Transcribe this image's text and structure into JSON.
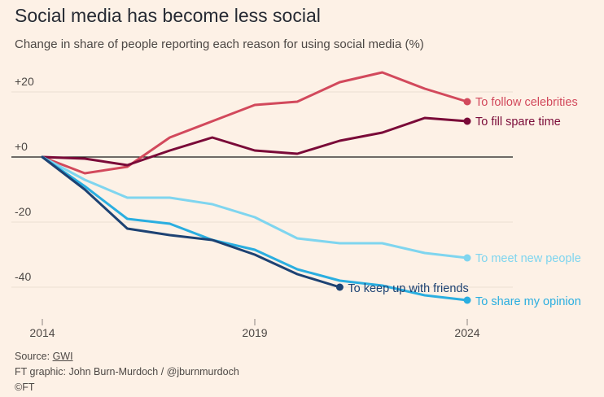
{
  "header": {
    "title": "Social media has become less social",
    "subtitle": "Change in share of people reporting each reason for using social media (%)"
  },
  "chart_data": {
    "type": "line",
    "title": "Social media has become less social",
    "subtitle": "Change in share of people reporting each reason for using social media (%)",
    "xlabel": "",
    "ylabel": "",
    "xlim": [
      2014,
      2025
    ],
    "ylim": [
      -45,
      28
    ],
    "x_ticks": [
      2014,
      2019,
      2024
    ],
    "x_tick_labels": [
      "2014",
      "2019",
      "2024"
    ],
    "y_ticks": [
      20,
      0,
      -20,
      -40
    ],
    "y_tick_labels": [
      "+20",
      "+0",
      "-20",
      "-40"
    ],
    "zero_line": true,
    "grid": true,
    "series": [
      {
        "name": "To follow celebrities",
        "color": "#d2495c",
        "x": [
          2014,
          2015,
          2016,
          2017,
          2018,
          2019,
          2020,
          2021,
          2022,
          2023,
          2024
        ],
        "values": [
          0,
          -5,
          -3,
          6,
          11,
          16,
          17,
          23,
          26,
          21,
          17
        ]
      },
      {
        "name": "To fill spare time",
        "color": "#7a0a38",
        "x": [
          2014,
          2015,
          2016,
          2017,
          2018,
          2019,
          2020,
          2021,
          2022,
          2023,
          2024
        ],
        "values": [
          0,
          -0.5,
          -2.5,
          2,
          6,
          2,
          1,
          5,
          7.5,
          12,
          11
        ]
      },
      {
        "name": "To meet new people",
        "color": "#7fd5ef",
        "x": [
          2014,
          2015,
          2016,
          2017,
          2018,
          2019,
          2020,
          2021,
          2022,
          2023,
          2024
        ],
        "values": [
          0,
          -7,
          -12.5,
          -12.5,
          -14.5,
          -18.5,
          -25,
          -26.5,
          -26.5,
          -29.5,
          -31
        ]
      },
      {
        "name": "To keep up with friends",
        "color": "#1d4273",
        "x": [
          2014,
          2015,
          2016,
          2017,
          2018,
          2019,
          2020,
          2021
        ],
        "values": [
          0,
          -10,
          -22,
          -24,
          -25.5,
          -30,
          -36,
          -40
        ]
      },
      {
        "name": "To share my opinion",
        "color": "#2aaee0",
        "x": [
          2014,
          2015,
          2016,
          2017,
          2018,
          2019,
          2020,
          2021,
          2022,
          2023,
          2024
        ],
        "values": [
          0,
          -9,
          -19,
          -20.5,
          -25.5,
          -28.5,
          -34.5,
          -38,
          -39.5,
          -42.5,
          -44
        ]
      }
    ]
  },
  "footer": {
    "source_prefix": "Source: ",
    "source_link": "GWI",
    "credit": "FT graphic: John Burn-Murdoch / @jburnmurdoch",
    "copyright": "©FT"
  }
}
